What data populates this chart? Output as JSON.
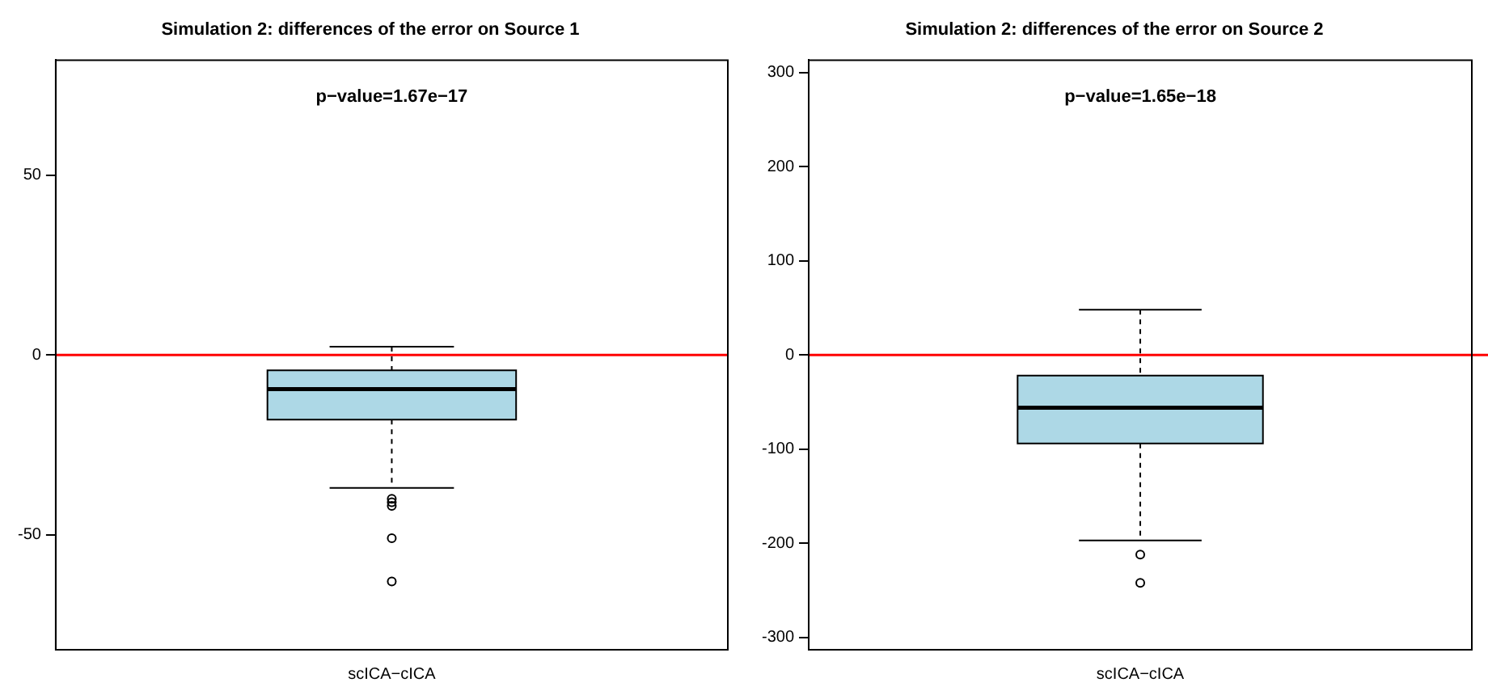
{
  "chart_data": [
    {
      "type": "box",
      "title": "Simulation 2: differences of the error on Source 1",
      "categories": [
        "scICA−cICA"
      ],
      "color": "#add8e6",
      "boxes": [
        {
          "low": -37,
          "q1": -18,
          "median": -9.5,
          "q3": -4.3,
          "high": 2.3,
          "outliers": [
            -40,
            -41,
            -42,
            -51,
            -63
          ]
        }
      ],
      "ylim": [
        -82,
        82
      ],
      "yticks": [
        -50,
        0,
        50
      ],
      "grid": false,
      "legend": false,
      "ref_lines": [
        {
          "axis": "y",
          "value": 0,
          "color": "#ff0000"
        }
      ],
      "annotations": [
        "p−value=1.67e−17"
      ]
    },
    {
      "type": "box",
      "title": "Simulation 2: differences of the error on Source 2",
      "categories": [
        "scICA−cICA"
      ],
      "color": "#add8e6",
      "boxes": [
        {
          "low": -197,
          "q1": -94,
          "median": -56,
          "q3": -22,
          "high": 48,
          "outliers": [
            -212,
            -242
          ]
        }
      ],
      "ylim": [
        -313,
        313
      ],
      "yticks": [
        -300,
        -200,
        -100,
        0,
        100,
        200,
        300
      ],
      "grid": false,
      "legend": false,
      "ref_lines": [
        {
          "axis": "y",
          "value": 0,
          "color": "#ff0000"
        }
      ],
      "annotations": [
        "p−value=1.65e−18"
      ]
    }
  ]
}
